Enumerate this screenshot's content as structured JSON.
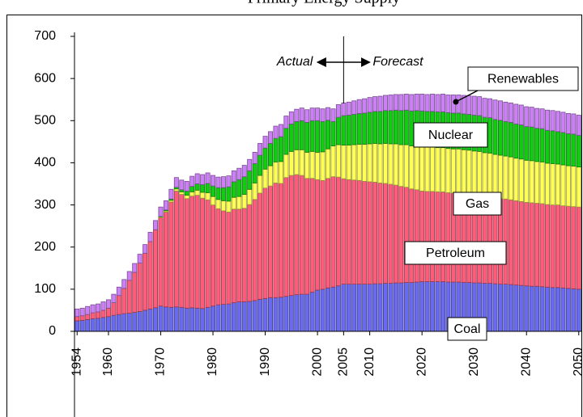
{
  "chart_data": {
    "type": "stacked_bar",
    "title": "Primary Energy Supply",
    "x": [
      1954,
      1955,
      1956,
      1957,
      1958,
      1959,
      1960,
      1961,
      1962,
      1963,
      1964,
      1965,
      1966,
      1967,
      1968,
      1969,
      1970,
      1971,
      1972,
      1973,
      1974,
      1975,
      1976,
      1977,
      1978,
      1979,
      1980,
      1981,
      1982,
      1983,
      1984,
      1985,
      1986,
      1987,
      1988,
      1989,
      1990,
      1991,
      1992,
      1993,
      1994,
      1995,
      1996,
      1997,
      1998,
      1999,
      2000,
      2001,
      2002,
      2003,
      2004,
      2005,
      2006,
      2007,
      2008,
      2009,
      2010,
      2011,
      2012,
      2013,
      2014,
      2015,
      2016,
      2017,
      2018,
      2019,
      2020,
      2021,
      2022,
      2023,
      2024,
      2025,
      2026,
      2027,
      2028,
      2029,
      2030,
      2031,
      2032,
      2033,
      2034,
      2035,
      2036,
      2037,
      2038,
      2039,
      2040,
      2041,
      2042,
      2043,
      2044,
      2045,
      2046,
      2047,
      2048,
      2049,
      2050
    ],
    "xlim": [
      1953.5,
      2050.5
    ],
    "xticks": [
      1954,
      1960,
      1970,
      1980,
      1990,
      2000,
      2005,
      2010,
      2020,
      2030,
      2040,
      2050
    ],
    "ylim": [
      0,
      700
    ],
    "yticks": [
      0,
      100,
      200,
      300,
      400,
      500,
      600,
      700
    ],
    "annotations": {
      "actual": "Actual",
      "forecast": "Forecast",
      "forecast_start": 2005
    },
    "series": [
      {
        "name": "Coal",
        "color": "#6a6af0",
        "values": [
          25,
          26,
          28,
          30,
          31,
          33,
          35,
          38,
          40,
          42,
          43,
          45,
          47,
          50,
          53,
          56,
          60,
          58,
          57,
          58,
          57,
          55,
          56,
          55,
          54,
          57,
          60,
          63,
          64,
          65,
          68,
          70,
          70,
          71,
          73,
          76,
          78,
          80,
          80,
          81,
          83,
          85,
          87,
          88,
          88,
          93,
          98,
          100,
          103,
          105,
          108,
          112,
          112,
          112,
          112,
          112,
          112,
          113,
          113,
          114,
          114,
          115,
          115,
          116,
          116,
          117,
          118,
          118,
          118,
          118,
          118,
          117,
          117,
          117,
          116,
          116,
          115,
          115,
          114,
          114,
          113,
          112,
          112,
          111,
          110,
          109,
          108,
          107,
          107,
          106,
          105,
          104,
          104,
          103,
          102,
          101,
          100
        ]
      },
      {
        "name": "Petroleum",
        "color": "#ff5c7c",
        "values": [
          10,
          11,
          12,
          14,
          15,
          17,
          20,
          30,
          45,
          60,
          78,
          95,
          115,
          135,
          160,
          185,
          210,
          225,
          250,
          275,
          268,
          260,
          265,
          268,
          262,
          255,
          240,
          228,
          222,
          218,
          222,
          220,
          222,
          230,
          240,
          252,
          262,
          265,
          272,
          270,
          282,
          285,
          285,
          282,
          275,
          270,
          262,
          258,
          260,
          262,
          258,
          250,
          248,
          247,
          246,
          244,
          243,
          241,
          239,
          237,
          235,
          232,
          229,
          226,
          222,
          219,
          215,
          214,
          214,
          213,
          213,
          212,
          211,
          211,
          210,
          209,
          208,
          207,
          206,
          205,
          204,
          203,
          202,
          201,
          200,
          199,
          198,
          198,
          197,
          197,
          196,
          196,
          196,
          195,
          195,
          195,
          195
        ]
      },
      {
        "name": "Gas",
        "color": "#ffff55",
        "values": [
          0,
          0,
          0,
          0,
          0,
          0,
          0,
          0,
          0,
          0,
          0,
          0,
          0,
          0,
          0,
          0,
          2,
          3,
          4,
          5,
          6,
          8,
          10,
          12,
          14,
          17,
          20,
          22,
          24,
          26,
          28,
          30,
          33,
          36,
          39,
          42,
          45,
          48,
          50,
          52,
          55,
          57,
          59,
          61,
          62,
          64,
          65,
          68,
          70,
          73,
          77,
          80,
          82,
          84,
          86,
          88,
          90,
          92,
          93,
          95,
          96,
          98,
          99,
          101,
          102,
          104,
          105,
          105,
          105,
          105,
          105,
          105,
          105,
          105,
          105,
          105,
          105,
          105,
          104,
          104,
          103,
          103,
          102,
          102,
          101,
          101,
          100,
          100,
          99,
          99,
          98,
          98,
          97,
          97,
          96,
          96,
          95
        ]
      },
      {
        "name": "Nuclear",
        "color": "#11cc11",
        "values": [
          0,
          0,
          0,
          0,
          0,
          0,
          0,
          0,
          0,
          0,
          0,
          0,
          0,
          0,
          0,
          0,
          1,
          2,
          3,
          4,
          5,
          10,
          13,
          15,
          18,
          22,
          25,
          28,
          31,
          34,
          37,
          40,
          42,
          44,
          46,
          48,
          50,
          53,
          56,
          59,
          62,
          65,
          67,
          69,
          71,
          73,
          75,
          72,
          68,
          58,
          65,
          70,
          71,
          72,
          73,
          74,
          75,
          76,
          77,
          78,
          79,
          80,
          81,
          82,
          83,
          84,
          85,
          85,
          85,
          85,
          85,
          85,
          85,
          85,
          85,
          85,
          85,
          85,
          84,
          84,
          83,
          83,
          82,
          82,
          81,
          81,
          80,
          80,
          79,
          79,
          78,
          78,
          77,
          77,
          76,
          76,
          75
        ]
      },
      {
        "name": "Renewables",
        "color": "#cc80f5",
        "values": [
          18,
          18,
          19,
          19,
          19,
          20,
          20,
          20,
          20,
          21,
          21,
          21,
          21,
          21,
          22,
          22,
          22,
          22,
          23,
          23,
          23,
          23,
          24,
          24,
          24,
          25,
          25,
          25,
          26,
          26,
          26,
          27,
          27,
          27,
          27,
          28,
          28,
          28,
          29,
          29,
          29,
          29,
          29,
          30,
          30,
          30,
          30,
          30,
          30,
          30,
          30,
          30,
          31,
          32,
          33,
          34,
          35,
          35,
          36,
          36,
          37,
          37,
          38,
          38,
          39,
          39,
          40,
          40,
          41,
          41,
          42,
          42,
          43,
          43,
          44,
          44,
          45,
          45,
          45,
          45,
          46,
          46,
          46,
          46,
          47,
          47,
          47,
          47,
          47,
          47,
          48,
          48,
          48,
          48,
          48,
          48,
          48
        ]
      }
    ]
  }
}
